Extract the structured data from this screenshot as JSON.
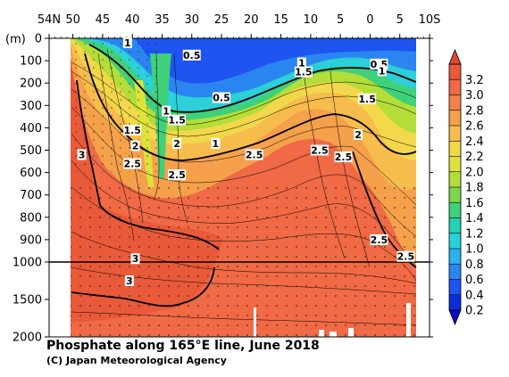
{
  "chart_data": {
    "type": "heatmap",
    "title": "Phosphate along 165°E line, June 2018",
    "credit": "(C) Japan Meteorological Agency",
    "y_unit_label": "(m)",
    "x_tick_labels": [
      "54N",
      "50",
      "45",
      "40",
      "35",
      "30",
      "25",
      "20",
      "15",
      "10",
      "5",
      "0",
      "5",
      "10S"
    ],
    "x_tick_values": [
      54,
      50,
      45,
      40,
      35,
      30,
      25,
      20,
      15,
      10,
      5,
      0,
      -5,
      -10
    ],
    "xlim": [
      54,
      -10
    ],
    "y_tick_labels": [
      "0",
      "100",
      "200",
      "300",
      "400",
      "500",
      "600",
      "700",
      "800",
      "900",
      "1000",
      "1500",
      "2000"
    ],
    "y_tick_values": [
      0,
      100,
      200,
      300,
      400,
      500,
      600,
      700,
      800,
      900,
      1000,
      1500,
      2000
    ],
    "ylim": [
      0,
      2000
    ],
    "y_scale": "piecewise-linear: 0-1000 m and 1000-2000 m panels",
    "grid": false,
    "colorbar": {
      "labels": [
        "0.2",
        "0.4",
        "0.6",
        "0.8",
        "1.0",
        "1.2",
        "1.4",
        "1.6",
        "1.8",
        "2.0",
        "2.2",
        "2.4",
        "2.6",
        "2.8",
        "3.0",
        "3.2"
      ],
      "values": [
        0.2,
        0.4,
        0.6,
        0.8,
        1.0,
        1.2,
        1.4,
        1.6,
        1.8,
        2.0,
        2.2,
        2.4,
        2.6,
        2.8,
        3.0,
        3.2
      ],
      "colors": [
        "#0a2fd6",
        "#1e55f0",
        "#2b85f0",
        "#2bb0ee",
        "#2bd0d8",
        "#25d2b0",
        "#3fd07a",
        "#7bd64b",
        "#b3dd39",
        "#dde23a",
        "#f2d84a",
        "#f6bc4c",
        "#f5a04a",
        "#f3814a",
        "#ef6a45",
        "#e85a3a"
      ]
    },
    "contour_labels": [
      {
        "text": "1",
        "lat": 40.8,
        "depth": 20
      },
      {
        "text": "0.5",
        "lat": 30.0,
        "depth": 75
      },
      {
        "text": "1",
        "lat": 11.5,
        "depth": 110
      },
      {
        "text": "1.5",
        "lat": 11.2,
        "depth": 150
      },
      {
        "text": "0.5",
        "lat": -1.5,
        "depth": 115
      },
      {
        "text": "1",
        "lat": -2.0,
        "depth": 145
      },
      {
        "text": "0.5",
        "lat": 25.0,
        "depth": 265
      },
      {
        "text": "1",
        "lat": 34.3,
        "depth": 325
      },
      {
        "text": "1.5",
        "lat": 32.5,
        "depth": 365
      },
      {
        "text": "1.5",
        "lat": 0.5,
        "depth": 270
      },
      {
        "text": "1.5",
        "lat": 40.0,
        "depth": 410
      },
      {
        "text": "1",
        "lat": 26.0,
        "depth": 470
      },
      {
        "text": "2",
        "lat": 32.5,
        "depth": 470
      },
      {
        "text": "2",
        "lat": 39.5,
        "depth": 480
      },
      {
        "text": "2",
        "lat": 2.0,
        "depth": 430
      },
      {
        "text": "3",
        "lat": 48.5,
        "depth": 520
      },
      {
        "text": "2.5",
        "lat": 40.0,
        "depth": 560
      },
      {
        "text": "2.5",
        "lat": 19.5,
        "depth": 520
      },
      {
        "text": "2.5",
        "lat": 8.5,
        "depth": 500
      },
      {
        "text": "2.5",
        "lat": 4.5,
        "depth": 530
      },
      {
        "text": "2.5",
        "lat": 32.5,
        "depth": 610
      },
      {
        "text": "2.5",
        "lat": -1.5,
        "depth": 900
      },
      {
        "text": "3",
        "lat": 39.5,
        "depth": 985
      },
      {
        "text": "2.5",
        "lat": -6.0,
        "depth": 975
      },
      {
        "text": "3",
        "lat": 40.5,
        "depth": 1250
      }
    ]
  }
}
